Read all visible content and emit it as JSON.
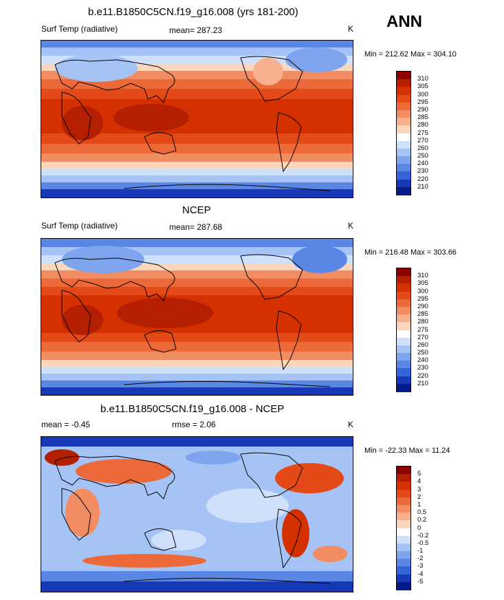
{
  "season_label": "ANN",
  "panels": [
    {
      "id": "model",
      "title": "b.e11.B1850C5CN.f19_g16.008 (yrs 181-200)",
      "left_label": "Surf Temp (radiative)",
      "center_label": "mean= 287.23",
      "units": "K",
      "stats": "Min = 212.62 Max = 304.10"
    },
    {
      "id": "obs",
      "title": "NCEP",
      "left_label": "Surf Temp (radiative)",
      "center_label": "mean= 287.68",
      "units": "K",
      "stats": "Min = 216.48 Max = 303.66"
    },
    {
      "id": "diff",
      "title": "b.e11.B1850C5CN.f19_g16.008 - NCEP",
      "left_label": "mean =  -0.45",
      "center_label": "rmse =   2.06",
      "units": "K",
      "stats": "Min = -22.33 Max =  11.24"
    }
  ],
  "colorbars": {
    "absolute": {
      "labels": [
        "310",
        "305",
        "300",
        "295",
        "290",
        "285",
        "280",
        "275",
        "270",
        "260",
        "250",
        "240",
        "230",
        "220",
        "210"
      ],
      "colors": [
        "#8b0000",
        "#b31f00",
        "#d43000",
        "#e44a18",
        "#ec6a3a",
        "#f28d63",
        "#f6b08d",
        "#fbd6bd",
        "#ffffff",
        "#cfe0fb",
        "#a6c3f5",
        "#7ea4ee",
        "#5a86e6",
        "#3563d8",
        "#1739b8",
        "#061a8a"
      ]
    },
    "difference": {
      "labels": [
        "5",
        "4",
        "3",
        "2",
        "1",
        "0.5",
        "0.2",
        "0",
        "-0.2",
        "-0.5",
        "-1",
        "-2",
        "-3",
        "-4",
        "-5"
      ],
      "colors": [
        "#8b0000",
        "#b31f00",
        "#d43000",
        "#e44a18",
        "#ec6a3a",
        "#f28d63",
        "#f6b08d",
        "#fbd6bd",
        "#ffffff",
        "#cfe0fb",
        "#a6c3f5",
        "#7ea4ee",
        "#5a86e6",
        "#3563d8",
        "#1739b8",
        "#061a8a"
      ]
    }
  }
}
